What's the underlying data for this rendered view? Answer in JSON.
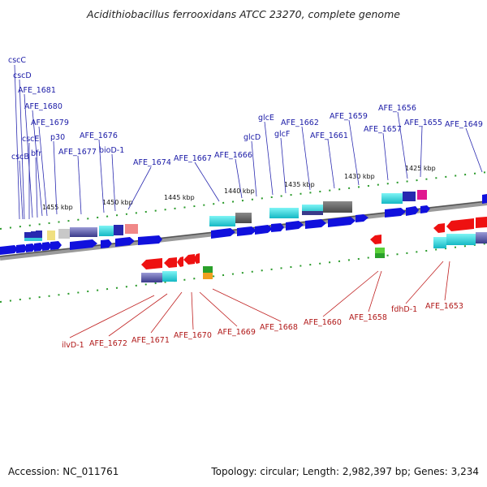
{
  "title": "Acidithiobacillus ferrooxidans ATCC 23270, complete genome",
  "footer": {
    "accession": "Accession: NC_011761",
    "topology": "Topology: circular; Length: 2,982,397 bp; Genes: 3,234"
  },
  "colors": {
    "label_upper": "#1a1aa6",
    "label_lower": "#b01818",
    "fwd_gene": "#1010dd",
    "rev_gene": "#ee1111"
  },
  "ticks": [
    {
      "label": "1455 kbp"
    },
    {
      "label": "1450 kbp"
    },
    {
      "label": "1445 kbp"
    },
    {
      "label": "1440 kbp"
    },
    {
      "label": "1435 kbp"
    },
    {
      "label": "1430 kbp"
    },
    {
      "label": "1425 kbp"
    }
  ],
  "labels_upper": [
    {
      "text": "cscC"
    },
    {
      "text": "cscD"
    },
    {
      "text": "AFE_1681"
    },
    {
      "text": "AFE_1680"
    },
    {
      "text": "AFE_1679"
    },
    {
      "text": "p30"
    },
    {
      "text": "cscB"
    },
    {
      "text": "cscE"
    },
    {
      "text": "bfr"
    },
    {
      "text": "AFE_1677"
    },
    {
      "text": "AFE_1676"
    },
    {
      "text": "bioD-1"
    },
    {
      "text": "AFE_1674"
    },
    {
      "text": "AFE_1667"
    },
    {
      "text": "AFE_1666"
    },
    {
      "text": "glcD"
    },
    {
      "text": "glcE"
    },
    {
      "text": "glcF"
    },
    {
      "text": "AFE_1662"
    },
    {
      "text": "AFE_1661"
    },
    {
      "text": "AFE_1659"
    },
    {
      "text": "AFE_1657"
    },
    {
      "text": "AFE_1656"
    },
    {
      "text": "AFE_1655"
    },
    {
      "text": "AFE_1649"
    }
  ],
  "labels_lower": [
    {
      "text": "ilvD-1"
    },
    {
      "text": "AFE_1672"
    },
    {
      "text": "AFE_1671"
    },
    {
      "text": "AFE_1670"
    },
    {
      "text": "AFE_1669"
    },
    {
      "text": "AFE_1668"
    },
    {
      "text": "AFE_1660"
    },
    {
      "text": "AFE_1658"
    },
    {
      "text": "fdhD-1"
    },
    {
      "text": "AFE_1653"
    }
  ]
}
